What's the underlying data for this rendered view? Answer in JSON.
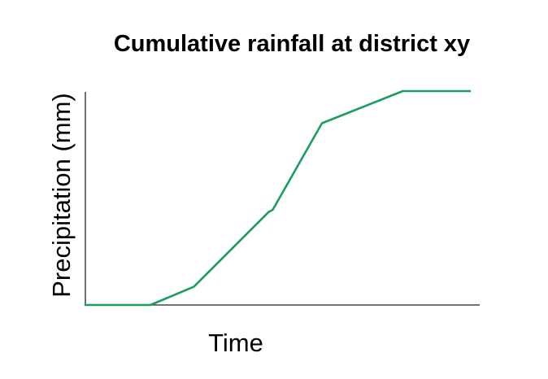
{
  "chart_data": {
    "type": "line",
    "title": "Cumulative rainfall at district xy",
    "xlabel": "Time",
    "ylabel": "Precipitation (mm)",
    "xlim": [
      0,
      100
    ],
    "ylim": [
      0,
      100
    ],
    "grid": false,
    "x_ticks_shown": false,
    "y_ticks_shown": false,
    "series": [
      {
        "color": "#1a9e5f",
        "x": [
          0,
          9.5,
          16.5,
          27.5,
          46.5,
          47.5,
          60,
          80.5,
          97.5
        ],
        "y": [
          0,
          0,
          0,
          8.5,
          43.5,
          44.5,
          85,
          100,
          100
        ]
      }
    ]
  }
}
